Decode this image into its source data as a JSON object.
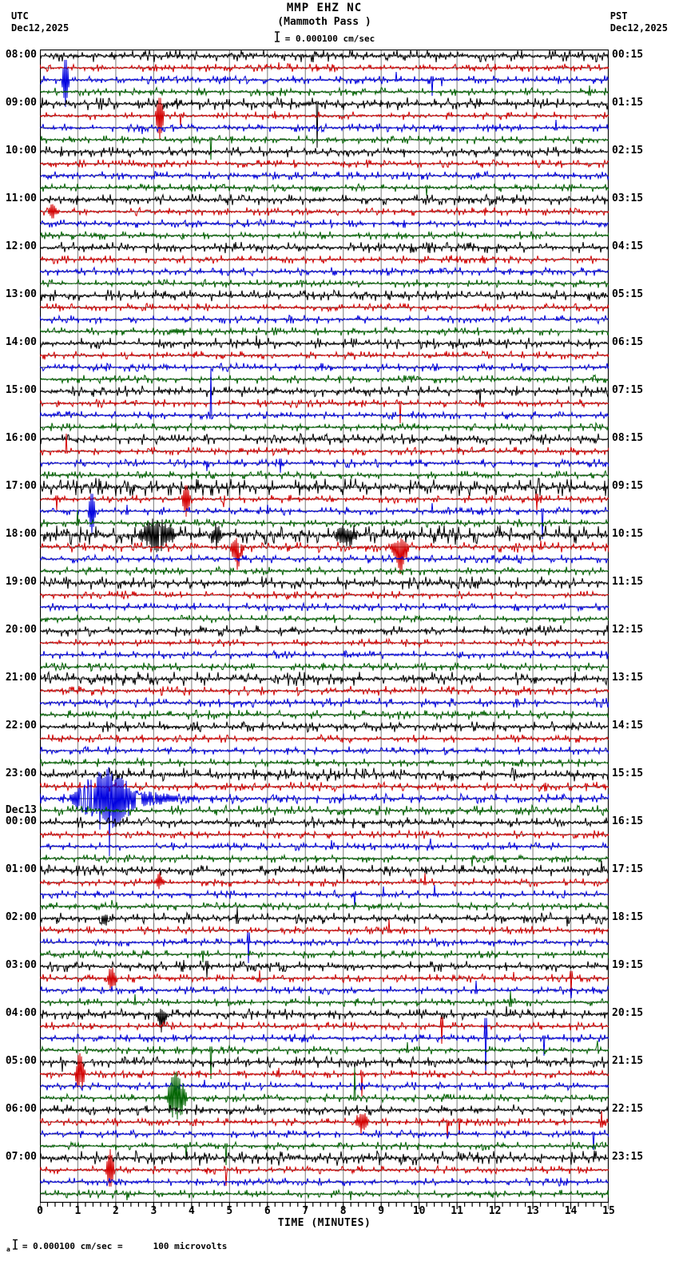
{
  "header": {
    "station_title": "MMP EHZ NC",
    "station_subtitle": "(Mammoth Pass )",
    "scale_label": "= 0.000100 cm/sec",
    "left_timezone": "UTC",
    "left_date": "Dec12,2025",
    "right_timezone": "PST",
    "right_date": "Dec12,2025"
  },
  "footer": {
    "prefix": "a",
    "equivalence_left": "= 0.000100 cm/sec =",
    "equivalence_right": "100 microvolts"
  },
  "x_axis": {
    "title": "TIME (MINUTES)",
    "ticks": [
      "0",
      "1",
      "2",
      "3",
      "4",
      "5",
      "6",
      "7",
      "8",
      "9",
      "10",
      "11",
      "12",
      "13",
      "14",
      "15"
    ],
    "minutes_range": [
      0,
      15
    ],
    "minor_ticks_per_minute": 5
  },
  "left_labels": [
    {
      "row": 0,
      "lines": [
        "08:00"
      ]
    },
    {
      "row": 4,
      "lines": [
        "09:00"
      ]
    },
    {
      "row": 8,
      "lines": [
        "10:00"
      ]
    },
    {
      "row": 12,
      "lines": [
        "11:00"
      ]
    },
    {
      "row": 16,
      "lines": [
        "12:00"
      ]
    },
    {
      "row": 20,
      "lines": [
        "13:00"
      ]
    },
    {
      "row": 24,
      "lines": [
        "14:00"
      ]
    },
    {
      "row": 28,
      "lines": [
        "15:00"
      ]
    },
    {
      "row": 32,
      "lines": [
        "16:00"
      ]
    },
    {
      "row": 36,
      "lines": [
        "17:00"
      ]
    },
    {
      "row": 40,
      "lines": [
        "18:00"
      ]
    },
    {
      "row": 44,
      "lines": [
        "19:00"
      ]
    },
    {
      "row": 48,
      "lines": [
        "20:00"
      ]
    },
    {
      "row": 52,
      "lines": [
        "21:00"
      ]
    },
    {
      "row": 56,
      "lines": [
        "22:00"
      ]
    },
    {
      "row": 60,
      "lines": [
        "23:00"
      ]
    },
    {
      "row": 64,
      "lines": [
        "Dec13",
        "00:00"
      ]
    },
    {
      "row": 68,
      "lines": [
        "01:00"
      ]
    },
    {
      "row": 72,
      "lines": [
        "02:00"
      ]
    },
    {
      "row": 76,
      "lines": [
        "03:00"
      ]
    },
    {
      "row": 80,
      "lines": [
        "04:00"
      ]
    },
    {
      "row": 84,
      "lines": [
        "05:00"
      ]
    },
    {
      "row": 88,
      "lines": [
        "06:00"
      ]
    },
    {
      "row": 92,
      "lines": [
        "07:00"
      ]
    }
  ],
  "right_labels": [
    {
      "row": 0,
      "text": "00:15"
    },
    {
      "row": 4,
      "text": "01:15"
    },
    {
      "row": 8,
      "text": "02:15"
    },
    {
      "row": 12,
      "text": "03:15"
    },
    {
      "row": 16,
      "text": "04:15"
    },
    {
      "row": 20,
      "text": "05:15"
    },
    {
      "row": 24,
      "text": "06:15"
    },
    {
      "row": 28,
      "text": "07:15"
    },
    {
      "row": 32,
      "text": "08:15"
    },
    {
      "row": 36,
      "text": "09:15"
    },
    {
      "row": 40,
      "text": "10:15"
    },
    {
      "row": 44,
      "text": "11:15"
    },
    {
      "row": 48,
      "text": "12:15"
    },
    {
      "row": 52,
      "text": "13:15"
    },
    {
      "row": 56,
      "text": "14:15"
    },
    {
      "row": 60,
      "text": "15:15"
    },
    {
      "row": 64,
      "text": "16:15"
    },
    {
      "row": 68,
      "text": "17:15"
    },
    {
      "row": 72,
      "text": "18:15"
    },
    {
      "row": 76,
      "text": "19:15"
    },
    {
      "row": 80,
      "text": "20:15"
    },
    {
      "row": 84,
      "text": "21:15"
    },
    {
      "row": 88,
      "text": "22:15"
    },
    {
      "row": 92,
      "text": "23:15"
    }
  ],
  "chart_data": {
    "type": "line",
    "subtype": "helicorder-seismogram",
    "title": "MMP EHZ NC (Mammoth Pass )",
    "start_utc": "Dec12,2025 08:00",
    "end_utc": "Dec13,2025 08:00",
    "rows": 96,
    "traces_per_hour": 4,
    "trace_duration_minutes": 15,
    "xlabel": "TIME (MINUTES)",
    "x_range": [
      0,
      15
    ],
    "grid": true,
    "grid_color": "#909090",
    "trace_colors": [
      "#000000",
      "#d40000",
      "#0000e0",
      "#006400"
    ],
    "amplitude_scale": "0.000100 cm/sec = 100 microvolts",
    "noise_boost": {
      "0": 1.1,
      "4": 1.1,
      "36": 1.6,
      "40": 1.7,
      "41": 1.3,
      "44": 1.15,
      "52": 1.25,
      "53": 1.15,
      "54": 1.15,
      "55": 1.15,
      "60": 1.2,
      "61": 1.15,
      "62": 1.2,
      "63": 1.25,
      "92": 1.35
    },
    "events": [
      {
        "r": 0,
        "m": 1.9,
        "u": 5,
        "d": 3
      },
      {
        "r": 0,
        "m": 5.2,
        "u": 6,
        "d": 2
      },
      {
        "r": 0,
        "m": 7.2,
        "u": 3,
        "d": 8
      },
      {
        "r": 0,
        "m": 12.7,
        "u": 14,
        "d": 5
      },
      {
        "r": 0,
        "m": 14.2,
        "u": 5,
        "d": 3
      },
      {
        "r": 1,
        "m": 6.3,
        "u": 7,
        "d": 3
      },
      {
        "r": 1,
        "m": 12.0,
        "u": 5,
        "d": 4
      },
      {
        "r": 2,
        "m": 0.67,
        "u": 30,
        "d": 34,
        "w": 0.1
      },
      {
        "r": 2,
        "m": 9.4,
        "u": 10,
        "d": 4
      },
      {
        "r": 2,
        "m": 10.35,
        "u": 8,
        "d": 20
      },
      {
        "r": 2,
        "m": 10.6,
        "u": 4,
        "d": 8
      },
      {
        "r": 3,
        "m": 14.5,
        "u": 8,
        "d": 8
      },
      {
        "r": 4,
        "m": 7.3,
        "u": 6,
        "d": 55
      },
      {
        "r": 4,
        "m": 9.7,
        "u": 8,
        "d": 3
      },
      {
        "r": 5,
        "m": 3.16,
        "u": 26,
        "d": 30,
        "w": 0.12
      },
      {
        "r": 5,
        "m": 3.7,
        "u": 4,
        "d": 12
      },
      {
        "r": 5,
        "m": 6.2,
        "u": 6,
        "d": 3
      },
      {
        "r": 6,
        "m": 2.7,
        "u": 3,
        "d": 8
      },
      {
        "r": 6,
        "m": 13.6,
        "u": 10,
        "d": 6
      },
      {
        "r": 7,
        "m": 4.5,
        "u": 6,
        "d": 25
      },
      {
        "r": 11,
        "m": 10.2,
        "u": 4,
        "d": 10
      },
      {
        "r": 13,
        "m": 0.34,
        "u": 12,
        "d": 10,
        "w": 0.2
      },
      {
        "r": 23,
        "m": 3.65,
        "u": 6,
        "d": 4,
        "w": 0.3
      },
      {
        "r": 24,
        "m": 5.7,
        "u": 10,
        "d": 4
      },
      {
        "r": 28,
        "m": 11.6,
        "u": 4,
        "d": 16
      },
      {
        "r": 29,
        "m": 9.5,
        "u": 5,
        "d": 25
      },
      {
        "r": 30,
        "m": 4.5,
        "u": 58,
        "d": 8
      },
      {
        "r": 33,
        "m": 0.7,
        "u": 22,
        "d": 5
      },
      {
        "r": 34,
        "m": 4.4,
        "u": 4,
        "d": 10
      },
      {
        "r": 34,
        "m": 6.35,
        "u": 10,
        "d": 12
      },
      {
        "r": 36,
        "m": 1.6,
        "u": 8,
        "d": 6
      },
      {
        "r": 37,
        "m": 0.45,
        "u": 8,
        "d": 14
      },
      {
        "r": 37,
        "m": 3.85,
        "u": 20,
        "d": 22,
        "w": 0.12
      },
      {
        "r": 37,
        "m": 4.85,
        "u": 8,
        "d": 10
      },
      {
        "r": 37,
        "m": 13.1,
        "u": 12,
        "d": 14
      },
      {
        "r": 38,
        "m": 1.37,
        "u": 26,
        "d": 30,
        "w": 0.1
      },
      {
        "r": 38,
        "m": 2.3,
        "u": 8,
        "d": 8
      },
      {
        "r": 38,
        "m": 6.0,
        "u": 8,
        "d": 6
      },
      {
        "r": 38,
        "m": 10.35,
        "u": 10,
        "d": 4
      },
      {
        "r": 38,
        "m": 13.25,
        "u": 6,
        "d": 35
      },
      {
        "r": 39,
        "m": 1.0,
        "u": 16,
        "d": 6
      },
      {
        "r": 40,
        "m": 3.1,
        "u": 28,
        "d": 26,
        "w": 0.55
      },
      {
        "r": 40,
        "m": 4.65,
        "u": 18,
        "d": 20,
        "w": 0.15
      },
      {
        "r": 40,
        "m": 8.1,
        "u": 16,
        "d": 18,
        "w": 0.4
      },
      {
        "r": 40,
        "m": 12.4,
        "u": 6,
        "d": 4
      },
      {
        "r": 41,
        "m": 5.2,
        "u": 16,
        "d": 30,
        "w": 0.2
      },
      {
        "r": 41,
        "m": 9.5,
        "u": 14,
        "d": 38,
        "w": 0.25
      },
      {
        "r": 41,
        "m": 13.2,
        "u": 8,
        "d": 6
      },
      {
        "r": 62,
        "m": 1.3,
        "u": 20,
        "d": 22,
        "w": 0.5
      },
      {
        "r": 62,
        "m": 1.75,
        "u": 42,
        "d": 46,
        "w": 1.0
      },
      {
        "r": 62,
        "m": 1.83,
        "u": 6,
        "d": 72,
        "w": 0.04
      },
      {
        "r": 62,
        "m": 2.8,
        "u": 10,
        "d": 10,
        "w": 1.2
      },
      {
        "r": 62,
        "m": 3.6,
        "u": 5,
        "d": 5,
        "w": 0.8
      },
      {
        "r": 66,
        "m": 7.7,
        "u": 8,
        "d": 6
      },
      {
        "r": 66,
        "m": 10.3,
        "u": 10,
        "d": 4
      },
      {
        "r": 67,
        "m": 11.4,
        "u": 3,
        "d": 10
      },
      {
        "r": 68,
        "m": 8.0,
        "u": 3,
        "d": 14
      },
      {
        "r": 68,
        "m": 14.8,
        "u": 12,
        "d": 4
      },
      {
        "r": 69,
        "m": 3.16,
        "u": 14,
        "d": 10,
        "w": 0.15
      },
      {
        "r": 69,
        "m": 10.15,
        "u": 12,
        "d": 6
      },
      {
        "r": 70,
        "m": 8.3,
        "u": 4,
        "d": 16
      },
      {
        "r": 70,
        "m": 9.05,
        "u": 10,
        "d": 4
      },
      {
        "r": 70,
        "m": 10.4,
        "u": 12,
        "d": 4
      },
      {
        "r": 71,
        "m": 1.9,
        "u": 8,
        "d": 3
      },
      {
        "r": 72,
        "m": 1.7,
        "u": 10,
        "d": 16,
        "w": 0.2
      },
      {
        "r": 72,
        "m": 5.2,
        "u": 14,
        "d": 12
      },
      {
        "r": 72,
        "m": 13.9,
        "u": 4,
        "d": 10
      },
      {
        "r": 73,
        "m": 9.2,
        "u": 14,
        "d": 6
      },
      {
        "r": 74,
        "m": 5.5,
        "u": 22,
        "d": 26
      },
      {
        "r": 75,
        "m": 4.3,
        "u": 8,
        "d": 10
      },
      {
        "r": 76,
        "m": 3.8,
        "u": 8,
        "d": 6
      },
      {
        "r": 76,
        "m": 4.4,
        "u": 12,
        "d": 14
      },
      {
        "r": 77,
        "m": 1.9,
        "u": 22,
        "d": 24,
        "w": 0.15
      },
      {
        "r": 77,
        "m": 5.8,
        "u": 10,
        "d": 8
      },
      {
        "r": 77,
        "m": 12.5,
        "u": 8,
        "d": 4
      },
      {
        "r": 77,
        "m": 14.0,
        "u": 16,
        "d": 18
      },
      {
        "r": 78,
        "m": 11.5,
        "u": 12,
        "d": 8
      },
      {
        "r": 78,
        "m": 14.0,
        "u": 4,
        "d": 10
      },
      {
        "r": 79,
        "m": 2.5,
        "u": 10,
        "d": 6
      },
      {
        "r": 79,
        "m": 7.1,
        "u": 8,
        "d": 3
      },
      {
        "r": 79,
        "m": 12.4,
        "u": 14,
        "d": 10
      },
      {
        "r": 80,
        "m": 3.2,
        "u": 8,
        "d": 24,
        "w": 0.2
      },
      {
        "r": 80,
        "m": 12.3,
        "u": 10,
        "d": 4
      },
      {
        "r": 81,
        "m": 10.6,
        "u": 20,
        "d": 22
      },
      {
        "r": 82,
        "m": 11.75,
        "u": 44,
        "d": 46
      },
      {
        "r": 82,
        "m": 13.3,
        "u": 6,
        "d": 22
      },
      {
        "r": 83,
        "m": 4.5,
        "u": 8,
        "d": 36
      },
      {
        "r": 83,
        "m": 9.7,
        "u": 10,
        "d": 6
      },
      {
        "r": 83,
        "m": 14.7,
        "u": 12,
        "d": 8
      },
      {
        "r": 84,
        "m": 0.6,
        "u": 4,
        "d": 12
      },
      {
        "r": 85,
        "m": 1.05,
        "u": 34,
        "d": 30,
        "w": 0.15
      },
      {
        "r": 85,
        "m": 6.3,
        "u": 8,
        "d": 6
      },
      {
        "r": 85,
        "m": 8.5,
        "u": 6,
        "d": 28
      },
      {
        "r": 86,
        "m": 4.35,
        "u": 8,
        "d": 3
      },
      {
        "r": 87,
        "m": 3.6,
        "u": 42,
        "d": 38,
        "w": 0.3
      },
      {
        "r": 87,
        "m": 8.3,
        "u": 38,
        "d": 6
      },
      {
        "r": 89,
        "m": 8.5,
        "u": 22,
        "d": 18,
        "w": 0.2
      },
      {
        "r": 89,
        "m": 10.75,
        "u": 4,
        "d": 20
      },
      {
        "r": 89,
        "m": 11.05,
        "u": 8,
        "d": 16
      },
      {
        "r": 89,
        "m": 14.8,
        "u": 14,
        "d": 12
      },
      {
        "r": 90,
        "m": 14.6,
        "u": 4,
        "d": 20
      },
      {
        "r": 91,
        "m": 3.85,
        "u": 4,
        "d": 18
      },
      {
        "r": 91,
        "m": 4.9,
        "u": 6,
        "d": 24
      },
      {
        "r": 93,
        "m": 1.85,
        "u": 26,
        "d": 24,
        "w": 0.12
      },
      {
        "r": 93,
        "m": 4.9,
        "u": 5,
        "d": 20
      },
      {
        "r": 95,
        "m": 2.3,
        "u": 4,
        "d": 8
      },
      {
        "r": 95,
        "m": 8.2,
        "u": 6,
        "d": 8
      }
    ]
  }
}
